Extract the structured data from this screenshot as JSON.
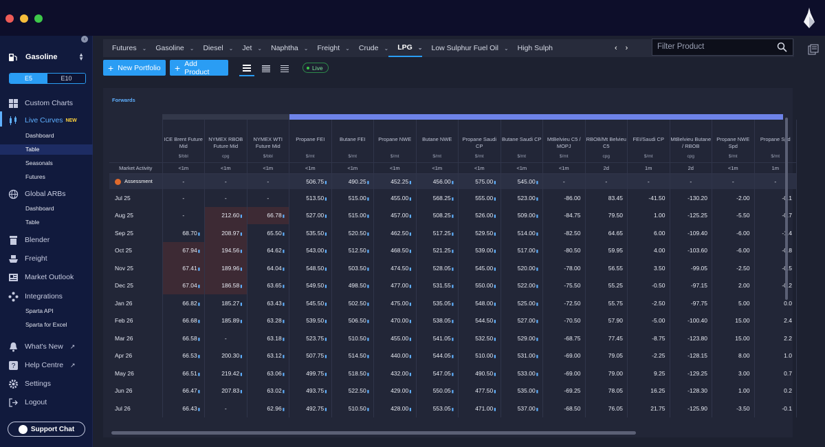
{
  "sidebar": {
    "product": "Gasoline",
    "segment": [
      "E5",
      "E10"
    ],
    "items": [
      {
        "label": "Custom Charts"
      },
      {
        "label": "Live Curves",
        "badge": "NEW"
      },
      {
        "label": "Blender"
      },
      {
        "label": "Freight"
      },
      {
        "label": "Market Outlook"
      },
      {
        "label": "Integrations"
      },
      {
        "label": "What's New"
      },
      {
        "label": "Help Centre"
      },
      {
        "label": "Settings"
      },
      {
        "label": "Logout"
      }
    ],
    "live_sub": [
      "Dashboard",
      "Table",
      "Seasonals",
      "Futures"
    ],
    "arbs_label": "Global ARBs",
    "arbs_sub": [
      "Dashboard",
      "Table"
    ],
    "integ_sub": [
      "Sparta API",
      "Sparta for Excel"
    ],
    "support": "Support Chat"
  },
  "tabs": [
    "Futures",
    "Gasoline",
    "Diesel",
    "Jet",
    "Naphtha",
    "Freight",
    "Crude",
    "LPG",
    "Low Sulphur Fuel Oil",
    "High Sulph"
  ],
  "active_tab": "LPG",
  "filter_placeholder": "Filter Product",
  "toolbar": {
    "new_portfolio": "New Portfolio",
    "add_product": "Add Product",
    "live": "Live"
  },
  "section_title": "Forwards",
  "columns": [
    {
      "name": "ICE Brent Future Mid",
      "unit": "$/bbl",
      "activity": "<1m"
    },
    {
      "name": "NYMEX RBOB Future Mid",
      "unit": "cpg",
      "activity": "<1m"
    },
    {
      "name": "NYMEX WTI Future Mid",
      "unit": "$/bbl",
      "activity": "<1m"
    },
    {
      "name": "Propane FEI",
      "unit": "$/mt",
      "activity": "<1m"
    },
    {
      "name": "Butane FEI",
      "unit": "$/mt",
      "activity": "<1m"
    },
    {
      "name": "Propane NWE",
      "unit": "$/mt",
      "activity": "<1m"
    },
    {
      "name": "Butane NWE",
      "unit": "$/mt",
      "activity": "<1m"
    },
    {
      "name": "Propane Saudi CP",
      "unit": "$/mt",
      "activity": "<1m"
    },
    {
      "name": "Butane Saudi CP",
      "unit": "$/mt",
      "activity": "<1m"
    },
    {
      "name": "MtBelvieu C5 / MOPJ",
      "unit": "$/mt",
      "activity": "<1m"
    },
    {
      "name": "RBOB/Mt Belvieu C5",
      "unit": "cpg",
      "activity": "2d"
    },
    {
      "name": "FEI/Saudi CP",
      "unit": "$/mt",
      "activity": "1m"
    },
    {
      "name": "MtBelvieu Butane / RBOB",
      "unit": "cpg",
      "activity": "2d"
    },
    {
      "name": "Propane NWE Spd",
      "unit": "$/mt",
      "activity": "<1m"
    },
    {
      "name": "Propane Spd",
      "unit": "$/mt",
      "activity": "1m"
    }
  ],
  "market_activity_label": "Market Activity",
  "assessment": {
    "label": "Assessment",
    "values": [
      "-",
      "-",
      "-",
      "506.75",
      "490.25",
      "452.25",
      "456.00",
      "575.00",
      "545.00",
      "-",
      "-",
      "-",
      "-",
      "-",
      "-"
    ]
  },
  "rows": [
    {
      "label": "Jul 25",
      "values": [
        "-",
        "-",
        "-",
        "513.50",
        "515.00",
        "455.00",
        "568.25",
        "555.00",
        "523.00",
        "-86.00",
        "83.45",
        "-41.50",
        "-130.20",
        "-2.00",
        "-0.1"
      ]
    },
    {
      "label": "Aug 25",
      "values": [
        "-",
        "212.60",
        "66.78",
        "527.00",
        "515.00",
        "457.00",
        "508.25",
        "526.00",
        "509.00",
        "-84.75",
        "79.50",
        "1.00",
        "-125.25",
        "-5.50",
        "-0.7"
      ]
    },
    {
      "label": "Sep 25",
      "values": [
        "68.70",
        "208.97",
        "65.50",
        "535.50",
        "520.50",
        "462.50",
        "517.25",
        "529.50",
        "514.00",
        "-82.50",
        "64.65",
        "6.00",
        "-109.40",
        "-6.00",
        "-1.4"
      ]
    },
    {
      "label": "Oct 25",
      "values": [
        "67.94",
        "194.56",
        "64.62",
        "543.00",
        "512.50",
        "468.50",
        "521.25",
        "539.00",
        "517.00",
        "-80.50",
        "59.95",
        "4.00",
        "-103.60",
        "-6.00",
        "-0.8"
      ]
    },
    {
      "label": "Nov 25",
      "values": [
        "67.41",
        "189.96",
        "64.04",
        "548.50",
        "503.50",
        "474.50",
        "528.05",
        "545.00",
        "520.00",
        "-78.00",
        "56.55",
        "3.50",
        "-99.05",
        "-2.50",
        "-0.5"
      ]
    },
    {
      "label": "Dec 25",
      "values": [
        "67.04",
        "186.58",
        "63.65",
        "549.50",
        "498.50",
        "477.00",
        "531.55",
        "550.00",
        "522.00",
        "-75.50",
        "55.25",
        "-0.50",
        "-97.15",
        "2.00",
        "-0.2"
      ]
    },
    {
      "label": "Jan 26",
      "values": [
        "66.82",
        "185.27",
        "63.43",
        "545.50",
        "502.50",
        "475.00",
        "535.05",
        "548.00",
        "525.00",
        "-72.50",
        "55.75",
        "-2.50",
        "-97.75",
        "5.00",
        "0.0"
      ]
    },
    {
      "label": "Feb 26",
      "values": [
        "66.68",
        "185.89",
        "63.28",
        "539.50",
        "506.50",
        "470.00",
        "538.05",
        "544.50",
        "527.00",
        "-70.50",
        "57.90",
        "-5.00",
        "-100.40",
        "15.00",
        "2.4"
      ]
    },
    {
      "label": "Mar 26",
      "values": [
        "66.58",
        "-",
        "63.18",
        "523.75",
        "510.50",
        "455.00",
        "541.05",
        "532.50",
        "529.00",
        "-68.75",
        "77.45",
        "-8.75",
        "-123.80",
        "15.00",
        "2.2"
      ]
    },
    {
      "label": "Apr 26",
      "values": [
        "66.53",
        "200.30",
        "63.12",
        "507.75",
        "514.50",
        "440.00",
        "544.05",
        "510.00",
        "531.00",
        "-69.00",
        "79.05",
        "-2.25",
        "-128.15",
        "8.00",
        "1.0"
      ]
    },
    {
      "label": "May 26",
      "values": [
        "66.51",
        "219.42",
        "63.06",
        "499.75",
        "518.50",
        "432.00",
        "547.05",
        "490.50",
        "533.00",
        "-69.00",
        "79.00",
        "9.25",
        "-129.25",
        "3.00",
        "0.7"
      ]
    },
    {
      "label": "Jun 26",
      "values": [
        "66.47",
        "207.83",
        "63.02",
        "493.75",
        "522.50",
        "429.00",
        "550.05",
        "477.50",
        "535.00",
        "-69.25",
        "78.05",
        "16.25",
        "-128.30",
        "1.00",
        "0.2"
      ]
    },
    {
      "label": "Jul 26",
      "values": [
        "66.43",
        "-",
        "62.96",
        "492.75",
        "510.50",
        "428.00",
        "553.05",
        "471.00",
        "537.00",
        "-68.50",
        "76.05",
        "21.75",
        "-125.90",
        "-3.50",
        "-0.1"
      ]
    }
  ],
  "highlight_cells": [
    [
      1,
      1
    ],
    [
      1,
      2
    ],
    [
      2,
      1
    ],
    [
      3,
      0
    ],
    [
      3,
      1
    ],
    [
      4,
      0
    ],
    [
      4,
      1
    ],
    [
      5,
      0
    ],
    [
      5,
      1
    ]
  ]
}
